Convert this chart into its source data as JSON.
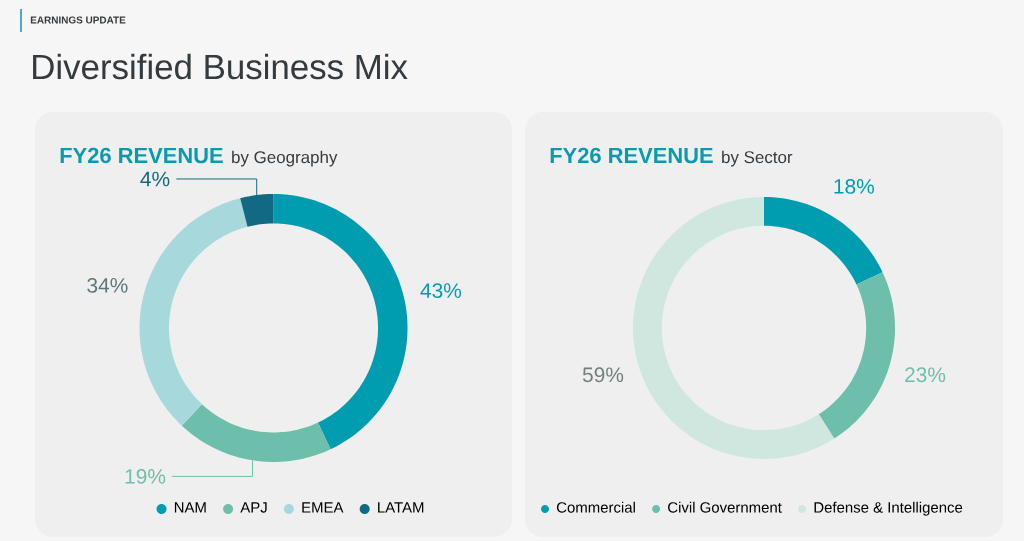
{
  "chart_data": [
    {
      "type": "donut",
      "title": "FY26 REVENUE",
      "subtitle": "by Geography",
      "annotations": [
        "EARNINGS UPDATE",
        "Diversified Business Mix"
      ],
      "categories": [
        "NAM",
        "APJ",
        "EMEA",
        "LATAM"
      ],
      "values": [
        43,
        19,
        34,
        4
      ],
      "value_labels": [
        "43%",
        "19%",
        "34%",
        "4%"
      ],
      "colors": [
        "#009db0",
        "#6dbeaa",
        "#a7d9dc",
        "#126983"
      ],
      "legend": "bottom"
    },
    {
      "type": "donut",
      "title": "FY26 REVENUE",
      "subtitle": "by Sector",
      "categories": [
        "Commercial",
        "Civil Government",
        "Defense & Intelligence"
      ],
      "values": [
        18,
        23,
        59
      ],
      "value_labels": [
        "18%",
        "23%",
        "59%"
      ],
      "colors": [
        "#009db0",
        "#6dbeaa",
        "#cfe7df"
      ],
      "legend": "bottom"
    }
  ]
}
